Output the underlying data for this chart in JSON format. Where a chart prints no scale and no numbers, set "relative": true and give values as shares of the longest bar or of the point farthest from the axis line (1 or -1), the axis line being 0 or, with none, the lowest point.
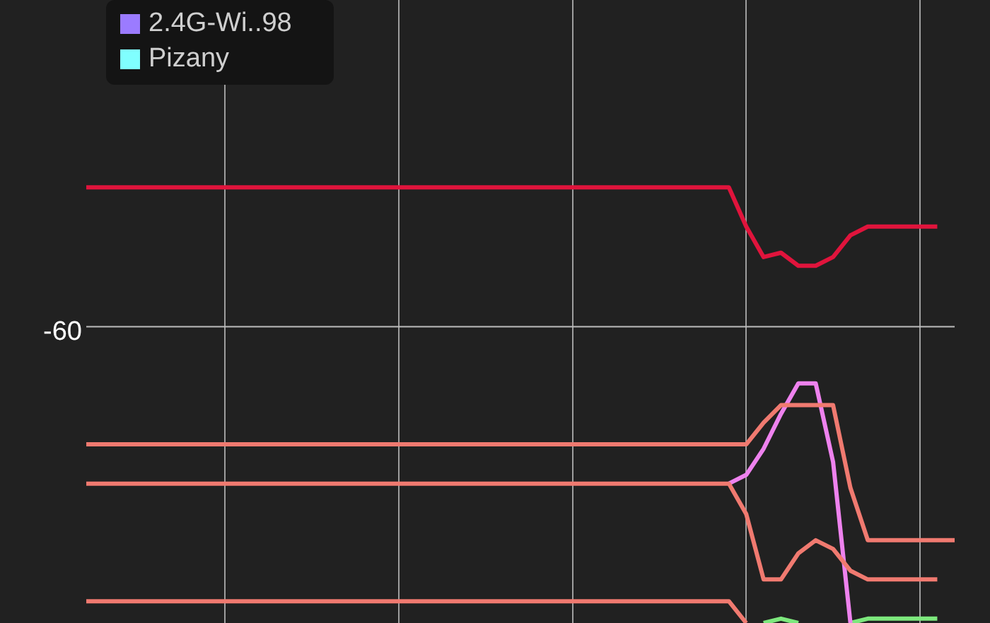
{
  "chart_data": {
    "type": "line",
    "relative": true,
    "grid": "x",
    "legend": "top left",
    "marker": "none",
    "line_style": "solid",
    "categories": [
      null,
      null,
      null,
      null,
      null,
      null,
      null,
      null,
      null,
      null,
      null,
      null,
      null,
      null,
      null,
      null,
      null,
      null,
      null,
      null,
      null,
      null,
      null,
      null,
      null,
      null,
      null,
      null,
      null,
      null,
      null,
      null,
      null,
      null,
      null,
      null,
      null,
      null,
      null,
      null,
      null,
      null,
      null,
      null,
      null,
      null,
      null,
      null,
      null,
      null,
      null
    ],
    "ref_lines": [
      {
        "axis": "y",
        "value": 0.68,
        "color": "#bdbdbd"
      }
    ],
    "annotations": [
      "-60"
    ],
    "series": [
      {
        "color": "#e0143c",
        "values": [
          1,
          1,
          1,
          1,
          1,
          1,
          1,
          1,
          1,
          1,
          1,
          1,
          1,
          1,
          1,
          1,
          1,
          1,
          1,
          1,
          1,
          1,
          1,
          1,
          1,
          1,
          1,
          1,
          1,
          1,
          1,
          1,
          1,
          1,
          1,
          1,
          1,
          1,
          0.91,
          0.84,
          0.85,
          0.82,
          0.82,
          0.84,
          0.89,
          0.91,
          0.91,
          0.91,
          0.91,
          0.91,
          null
        ]
      },
      {
        "color": "#f07a70",
        "values": [
          0.41,
          0.41,
          0.41,
          0.41,
          0.41,
          0.41,
          0.41,
          0.41,
          0.41,
          0.41,
          0.41,
          0.41,
          0.41,
          0.41,
          0.41,
          0.41,
          0.41,
          0.41,
          0.41,
          0.41,
          0.41,
          0.41,
          0.41,
          0.41,
          0.41,
          0.41,
          0.41,
          0.41,
          0.41,
          0.41,
          0.41,
          0.41,
          0.41,
          0.41,
          0.41,
          0.41,
          0.41,
          0.41,
          0.41,
          0.46,
          0.5,
          0.5,
          0.5,
          0.5,
          0.31,
          0.19,
          0.19,
          0.19,
          0.19,
          0.19,
          0.19
        ]
      },
      {
        "color": "#f07a70",
        "values": [
          0.32,
          0.32,
          0.32,
          0.32,
          0.32,
          0.32,
          0.32,
          0.32,
          0.32,
          0.32,
          0.32,
          0.32,
          0.32,
          0.32,
          0.32,
          0.32,
          0.32,
          0.32,
          0.32,
          0.32,
          0.32,
          0.32,
          0.32,
          0.32,
          0.32,
          0.32,
          0.32,
          0.32,
          0.32,
          0.32,
          0.32,
          0.32,
          0.32,
          0.32,
          0.32,
          0.32,
          0.32,
          0.32,
          0.25,
          0.1,
          0.1,
          0.16,
          0.19,
          0.17,
          0.12,
          0.1,
          0.1,
          0.1,
          0.1,
          0.1,
          null
        ]
      },
      {
        "color": "#f07a70",
        "values": [
          0.05,
          0.05,
          0.05,
          0.05,
          0.05,
          0.05,
          0.05,
          0.05,
          0.05,
          0.05,
          0.05,
          0.05,
          0.05,
          0.05,
          0.05,
          0.05,
          0.05,
          0.05,
          0.05,
          0.05,
          0.05,
          0.05,
          0.05,
          0.05,
          0.05,
          0.05,
          0.05,
          0.05,
          0.05,
          0.05,
          0.05,
          0.05,
          0.05,
          0.05,
          0.05,
          0.05,
          0.05,
          0.05,
          0,
          null,
          null,
          null,
          null,
          null,
          null,
          null,
          null,
          null,
          null,
          null,
          null
        ]
      },
      {
        "color": "#ee82ee",
        "values": [
          null,
          null,
          null,
          null,
          null,
          null,
          null,
          null,
          null,
          null,
          null,
          null,
          null,
          null,
          null,
          null,
          null,
          null,
          null,
          null,
          null,
          null,
          null,
          null,
          null,
          null,
          null,
          null,
          null,
          null,
          null,
          null,
          null,
          null,
          null,
          null,
          null,
          0.32,
          0.34,
          0.4,
          0.48,
          0.55,
          0.55,
          0.37,
          0,
          null,
          null,
          null,
          null,
          null,
          null
        ]
      },
      {
        "color": "#7de87d",
        "values": [
          null,
          null,
          null,
          null,
          null,
          null,
          null,
          null,
          null,
          null,
          null,
          null,
          null,
          null,
          null,
          null,
          null,
          null,
          null,
          null,
          null,
          null,
          null,
          null,
          null,
          null,
          null,
          null,
          null,
          null,
          null,
          null,
          null,
          null,
          null,
          null,
          null,
          null,
          null,
          0,
          0.01,
          0,
          null,
          null,
          0,
          0.01,
          0.01,
          0.01,
          0.01,
          0.01,
          null
        ]
      },
      {
        "name": "2.4G-Wi..98",
        "color": "#9b7bff",
        "values": [
          null,
          null,
          null,
          null,
          null,
          null,
          null,
          null,
          null,
          null,
          null,
          null,
          null,
          null,
          null,
          null,
          null,
          null,
          null,
          null,
          null,
          null,
          null,
          null,
          null,
          null,
          null,
          null,
          null,
          null,
          null,
          null,
          null,
          null,
          null,
          null,
          null,
          null,
          null,
          null,
          null,
          null,
          null,
          null,
          null,
          null,
          null,
          null,
          null,
          null,
          null
        ]
      },
      {
        "name": "Pizany",
        "color": "#80ffff",
        "values": [
          null,
          null,
          null,
          null,
          null,
          null,
          null,
          null,
          null,
          null,
          null,
          null,
          null,
          null,
          null,
          null,
          null,
          null,
          null,
          null,
          null,
          null,
          null,
          null,
          null,
          null,
          null,
          null,
          null,
          null,
          null,
          null,
          null,
          null,
          null,
          null,
          null,
          null,
          null,
          null,
          null,
          null,
          null,
          null,
          null,
          null,
          null,
          null,
          null,
          null,
          null
        ]
      }
    ]
  }
}
